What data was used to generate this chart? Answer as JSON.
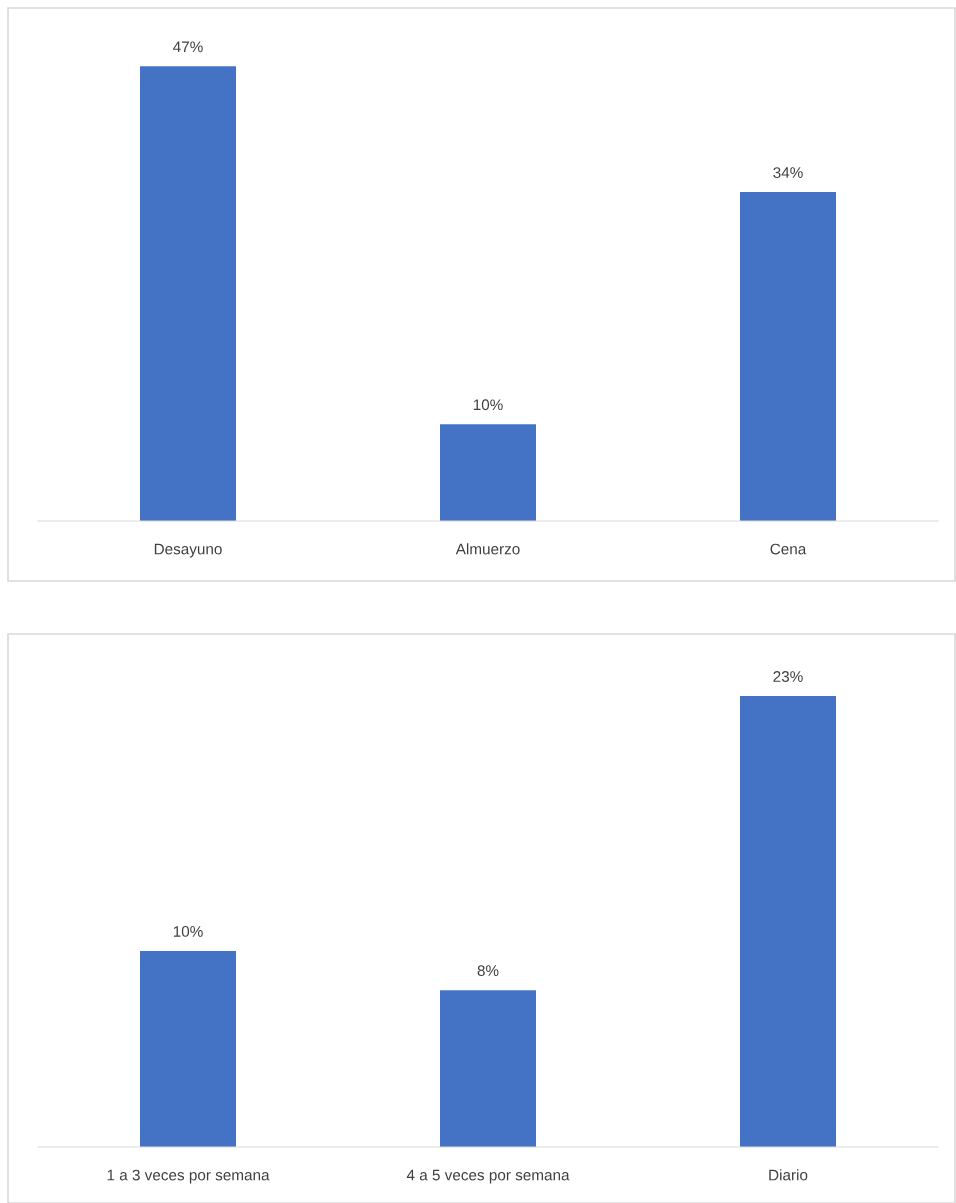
{
  "chart_data": [
    {
      "type": "bar",
      "categories": [
        "Desayuno",
        "Almuerzo",
        "Cena"
      ],
      "values": [
        47,
        10,
        34
      ],
      "color": "#4472c4",
      "value_labels": [
        "47%",
        "10%",
        "34%"
      ]
    },
    {
      "type": "bar",
      "categories": [
        "1 a 3 veces por semana",
        "4 a 5 veces por semana",
        "Diario"
      ],
      "values": [
        10,
        8,
        23
      ],
      "color": "#4472c4",
      "value_labels": [
        "10%",
        "8%",
        "23%"
      ]
    }
  ]
}
